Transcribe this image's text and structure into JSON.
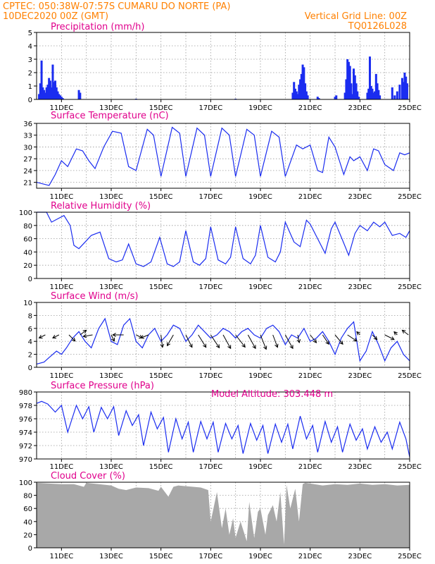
{
  "header": {
    "line1": "CPTEC:   050:38W-07:57S   CUMARU DO NORTE (PA)",
    "line2_left": "10DEC2020 00Z (GMT)",
    "line2_right": "Vertical Grid Line: 00Z",
    "line3_right": "TQ0126L028"
  },
  "model_altitude": "Model Altitude: 303.448 m",
  "x_axis": {
    "range_days": [
      10,
      25
    ],
    "tick_days": [
      11,
      13,
      15,
      17,
      19,
      21,
      23,
      25
    ],
    "tick_labels": [
      "11DEC",
      "13DEC",
      "15DEC",
      "17DEC",
      "19DEC",
      "21DEC",
      "23DEC",
      "25DEC"
    ]
  },
  "colors": {
    "header": "#ff8000",
    "title": "#e0008c",
    "series": "#1a2cf0",
    "cloud": "#a8a8a8"
  },
  "chart_data": [
    {
      "type": "bar",
      "title": "Precipitation (mm/h)",
      "ylim": [
        0,
        5
      ],
      "yticks": [
        0,
        1,
        2,
        3,
        4,
        5
      ],
      "grid": true,
      "x": [
        10.1,
        10.15,
        10.2,
        10.25,
        10.3,
        10.35,
        10.4,
        10.45,
        10.5,
        10.55,
        10.6,
        10.65,
        10.7,
        10.75,
        10.8,
        10.85,
        10.9,
        10.95,
        11.0,
        11.05,
        11.7,
        11.75,
        14.0,
        18.0,
        20.3,
        20.35,
        20.4,
        20.45,
        20.5,
        20.55,
        20.6,
        20.65,
        20.7,
        20.75,
        20.8,
        20.85,
        20.9,
        21.3,
        21.35,
        22.0,
        22.05,
        22.4,
        22.45,
        22.5,
        22.55,
        22.6,
        22.65,
        22.7,
        22.75,
        22.8,
        22.85,
        22.9,
        22.95,
        23.3,
        23.35,
        23.4,
        23.45,
        23.5,
        23.55,
        23.6,
        23.65,
        23.7,
        23.75,
        23.8,
        24.3,
        24.4,
        24.5,
        24.6,
        24.7,
        24.75,
        24.8,
        24.85,
        24.9
      ],
      "values": [
        0.4,
        1.2,
        2.9,
        0.9,
        0.7,
        0.5,
        0.9,
        1.1,
        1.6,
        1.4,
        0.9,
        2.6,
        1.3,
        1.4,
        0.9,
        0.6,
        0.4,
        0.3,
        0.2,
        0.1,
        0.7,
        0.5,
        0.05,
        0.05,
        0.5,
        1.3,
        0.8,
        0.6,
        0.4,
        1.1,
        1.5,
        1.9,
        2.6,
        2.4,
        1.2,
        0.6,
        0.3,
        0.2,
        0.1,
        0.2,
        0.3,
        0.5,
        1.5,
        3.0,
        2.8,
        2.5,
        1.2,
        0.4,
        2.3,
        1.8,
        1.2,
        0.6,
        0.2,
        0.5,
        0.8,
        3.2,
        1.0,
        0.8,
        0.5,
        0.6,
        1.9,
        1.2,
        0.7,
        0.3,
        0.9,
        0.3,
        0.6,
        1.1,
        1.6,
        1.3,
        2.0,
        1.7,
        1.2
      ]
    },
    {
      "type": "line",
      "title": "Surface Temperature (nC)",
      "ylim": [
        19.5,
        36
      ],
      "yticks": [
        21,
        24,
        27,
        30,
        33,
        36
      ],
      "grid": true,
      "x": [
        10.0,
        10.5,
        10.75,
        11.0,
        11.25,
        11.6,
        11.85,
        12.1,
        12.35,
        12.7,
        13.05,
        13.4,
        13.7,
        14.0,
        14.45,
        14.7,
        15.0,
        15.45,
        15.75,
        16.0,
        16.45,
        16.75,
        17.0,
        17.45,
        17.75,
        18.0,
        18.45,
        18.75,
        19.0,
        19.45,
        19.75,
        20.0,
        20.45,
        20.7,
        21.0,
        21.3,
        21.5,
        21.75,
        22.0,
        22.35,
        22.6,
        22.75,
        23.0,
        23.3,
        23.55,
        23.75,
        24.0,
        24.35,
        24.6,
        24.8,
        25.0
      ],
      "values": [
        21.0,
        20.2,
        23.0,
        26.5,
        25.0,
        29.5,
        29.0,
        26.5,
        24.5,
        30.0,
        34.0,
        33.5,
        25.0,
        24.0,
        34.5,
        33.0,
        22.5,
        35.0,
        33.5,
        22.5,
        34.8,
        33.0,
        22.5,
        34.8,
        33.0,
        22.5,
        34.5,
        33.0,
        22.5,
        34.0,
        32.5,
        22.5,
        30.5,
        29.5,
        30.5,
        24.0,
        23.5,
        32.5,
        30.0,
        23.0,
        27.5,
        26.5,
        27.5,
        24.0,
        29.5,
        29.0,
        25.5,
        24.0,
        28.5,
        28.0,
        28.5
      ]
    },
    {
      "type": "line",
      "title": "Relative Humidity (%)",
      "ylim": [
        0,
        100
      ],
      "yticks": [
        0,
        20,
        40,
        60,
        80,
        100
      ],
      "grid": true,
      "x": [
        10.0,
        10.4,
        10.6,
        10.85,
        11.1,
        11.35,
        11.5,
        11.7,
        11.95,
        12.2,
        12.55,
        12.9,
        13.2,
        13.45,
        13.7,
        14.0,
        14.3,
        14.6,
        14.95,
        15.25,
        15.5,
        15.75,
        16.0,
        16.3,
        16.55,
        16.8,
        17.0,
        17.3,
        17.6,
        17.8,
        18.0,
        18.3,
        18.6,
        18.8,
        19.0,
        19.3,
        19.6,
        19.8,
        20.0,
        20.35,
        20.6,
        20.85,
        21.0,
        21.3,
        21.6,
        21.85,
        22.0,
        22.3,
        22.55,
        22.8,
        23.0,
        23.3,
        23.55,
        23.8,
        24.0,
        24.3,
        24.6,
        24.85,
        25.0
      ],
      "values": [
        100,
        100,
        85,
        90,
        95,
        80,
        50,
        45,
        55,
        65,
        70,
        30,
        25,
        28,
        52,
        22,
        18,
        25,
        62,
        22,
        18,
        25,
        72,
        25,
        20,
        30,
        78,
        28,
        22,
        32,
        78,
        30,
        22,
        35,
        80,
        32,
        25,
        40,
        85,
        55,
        48,
        88,
        82,
        60,
        38,
        75,
        85,
        58,
        35,
        68,
        80,
        72,
        85,
        78,
        85,
        65,
        68,
        62,
        72
      ]
    },
    {
      "type": "line",
      "title": "Surface Wind (m/s)",
      "ylim": [
        0,
        10
      ],
      "yticks": [
        0,
        2,
        4,
        6,
        8,
        10
      ],
      "grid": true,
      "x": [
        10.0,
        10.3,
        10.5,
        10.8,
        11.0,
        11.2,
        11.45,
        11.7,
        11.95,
        12.2,
        12.5,
        12.75,
        13.0,
        13.25,
        13.5,
        13.75,
        14.0,
        14.25,
        14.5,
        14.75,
        15.0,
        15.25,
        15.5,
        15.75,
        16.0,
        16.25,
        16.5,
        16.75,
        17.0,
        17.25,
        17.5,
        17.75,
        18.0,
        18.25,
        18.5,
        18.75,
        19.0,
        19.25,
        19.5,
        19.75,
        20.0,
        20.25,
        20.5,
        20.75,
        21.0,
        21.25,
        21.5,
        21.75,
        22.0,
        22.25,
        22.5,
        22.75,
        23.0,
        23.25,
        23.5,
        23.75,
        24.0,
        24.25,
        24.5,
        24.75,
        25.0
      ],
      "values": [
        0.5,
        0.8,
        1.5,
        2.5,
        2.0,
        3.0,
        4.5,
        5.5,
        4.0,
        3.0,
        6.0,
        7.5,
        4.0,
        3.5,
        6.5,
        7.5,
        4.0,
        3.0,
        5.0,
        6.0,
        4.0,
        5.0,
        6.5,
        6.0,
        4.0,
        5.0,
        6.5,
        5.5,
        4.5,
        5.0,
        6.0,
        5.5,
        4.5,
        5.5,
        6.0,
        5.0,
        4.5,
        6.0,
        6.5,
        5.5,
        3.5,
        5.0,
        4.5,
        6.0,
        4.0,
        4.5,
        5.5,
        4.0,
        2.0,
        4.5,
        6.0,
        7.0,
        1.0,
        2.5,
        5.5,
        3.5,
        1.0,
        3.0,
        4.0,
        2.0,
        1.0
      ],
      "wind_vectors": {
        "x": [
          10.35,
          10.9,
          11.3,
          11.75,
          12.25,
          13.0,
          13.5,
          14.0,
          14.5,
          15.0,
          15.5,
          16.0,
          16.5,
          17.0,
          17.5,
          18.0,
          18.5,
          19.0,
          19.5,
          20.0,
          20.5,
          21.0,
          21.5,
          22.0,
          22.5,
          23.0,
          23.5,
          24.0,
          24.5,
          24.95
        ],
        "u": [
          -0.4,
          -0.4,
          0.4,
          0.4,
          -0.6,
          0.2,
          -0.7,
          0.4,
          -0.5,
          0.1,
          -0.4,
          0.4,
          0.5,
          0.6,
          0.5,
          0.7,
          0.5,
          0.4,
          0.3,
          0.5,
          0.1,
          0.4,
          0.4,
          0.5,
          0.6,
          -0.2,
          0.3,
          0.6,
          -0.2,
          -0.4
        ],
        "v": [
          0.2,
          0.2,
          0.4,
          -0.3,
          0.1,
          0.4,
          0.0,
          0.2,
          0.2,
          0.8,
          0.7,
          0.8,
          0.8,
          0.9,
          0.9,
          0.9,
          0.9,
          1.0,
          0.8,
          0.9,
          0.5,
          0.5,
          0.6,
          0.6,
          0.4,
          -0.2,
          0.3,
          0.3,
          -0.2,
          -0.3
        ]
      }
    },
    {
      "type": "line",
      "title": "Surface Pressure (hPa)",
      "ylim": [
        970,
        980
      ],
      "yticks": [
        970,
        972,
        974,
        976,
        978,
        980
      ],
      "grid": true,
      "x": [
        10.0,
        10.2,
        10.45,
        10.75,
        11.0,
        11.25,
        11.6,
        11.85,
        12.1,
        12.3,
        12.6,
        12.85,
        13.1,
        13.3,
        13.6,
        13.85,
        14.1,
        14.3,
        14.6,
        14.85,
        15.1,
        15.3,
        15.6,
        15.85,
        16.1,
        16.3,
        16.6,
        16.85,
        17.1,
        17.3,
        17.6,
        17.85,
        18.1,
        18.3,
        18.6,
        18.85,
        19.1,
        19.3,
        19.6,
        19.85,
        20.1,
        20.3,
        20.6,
        20.85,
        21.1,
        21.3,
        21.6,
        21.85,
        22.1,
        22.3,
        22.6,
        22.85,
        23.1,
        23.3,
        23.6,
        23.85,
        24.1,
        24.3,
        24.6,
        24.85,
        25.0
      ],
      "values": [
        978.3,
        978.6,
        978.2,
        977.0,
        978.0,
        974.0,
        978.0,
        976.0,
        977.8,
        974.0,
        977.7,
        976.0,
        977.8,
        973.5,
        977.2,
        975.0,
        976.6,
        972.0,
        977.0,
        974.5,
        976.2,
        971.0,
        976.0,
        973.0,
        975.5,
        971.0,
        975.6,
        973.0,
        975.5,
        971.0,
        975.3,
        973.0,
        975.0,
        970.8,
        975.3,
        972.8,
        975.0,
        970.8,
        975.2,
        972.5,
        975.2,
        971.5,
        976.4,
        973.0,
        975.0,
        971.0,
        975.6,
        972.5,
        974.8,
        971.0,
        975.2,
        972.8,
        974.5,
        971.5,
        974.8,
        972.5,
        974.0,
        971.5,
        975.5,
        973.0,
        970.3
      ]
    },
    {
      "type": "area",
      "title": "Cloud Cover (%)",
      "ylim": [
        0,
        100
      ],
      "yticks": [
        0,
        20,
        40,
        60,
        80,
        100
      ],
      "grid": true,
      "x": [
        10.0,
        10.5,
        11.0,
        11.5,
        11.9,
        12.0,
        12.5,
        13.0,
        13.3,
        13.6,
        14.0,
        14.5,
        14.9,
        15.0,
        15.3,
        15.5,
        15.7,
        16.0,
        16.3,
        16.6,
        16.9,
        17.0,
        17.25,
        17.45,
        17.6,
        17.75,
        17.9,
        18.0,
        18.2,
        18.45,
        18.55,
        18.75,
        18.9,
        19.0,
        19.2,
        19.3,
        19.5,
        19.65,
        19.8,
        19.95,
        20.05,
        20.2,
        20.4,
        20.55,
        20.7,
        20.8,
        21.0,
        21.5,
        22.0,
        22.5,
        23.0,
        23.5,
        24.0,
        24.5,
        25.0
      ],
      "values": [
        99,
        98,
        97,
        97,
        93,
        99,
        97,
        95,
        90,
        88,
        92,
        91,
        87,
        93,
        78,
        93,
        95,
        94,
        93,
        92,
        88,
        40,
        85,
        30,
        60,
        20,
        45,
        15,
        40,
        10,
        70,
        15,
        55,
        60,
        20,
        50,
        65,
        40,
        85,
        5,
        96,
        60,
        90,
        40,
        97,
        99,
        98,
        95,
        97,
        96,
        98,
        96,
        97,
        95,
        96
      ]
    }
  ]
}
